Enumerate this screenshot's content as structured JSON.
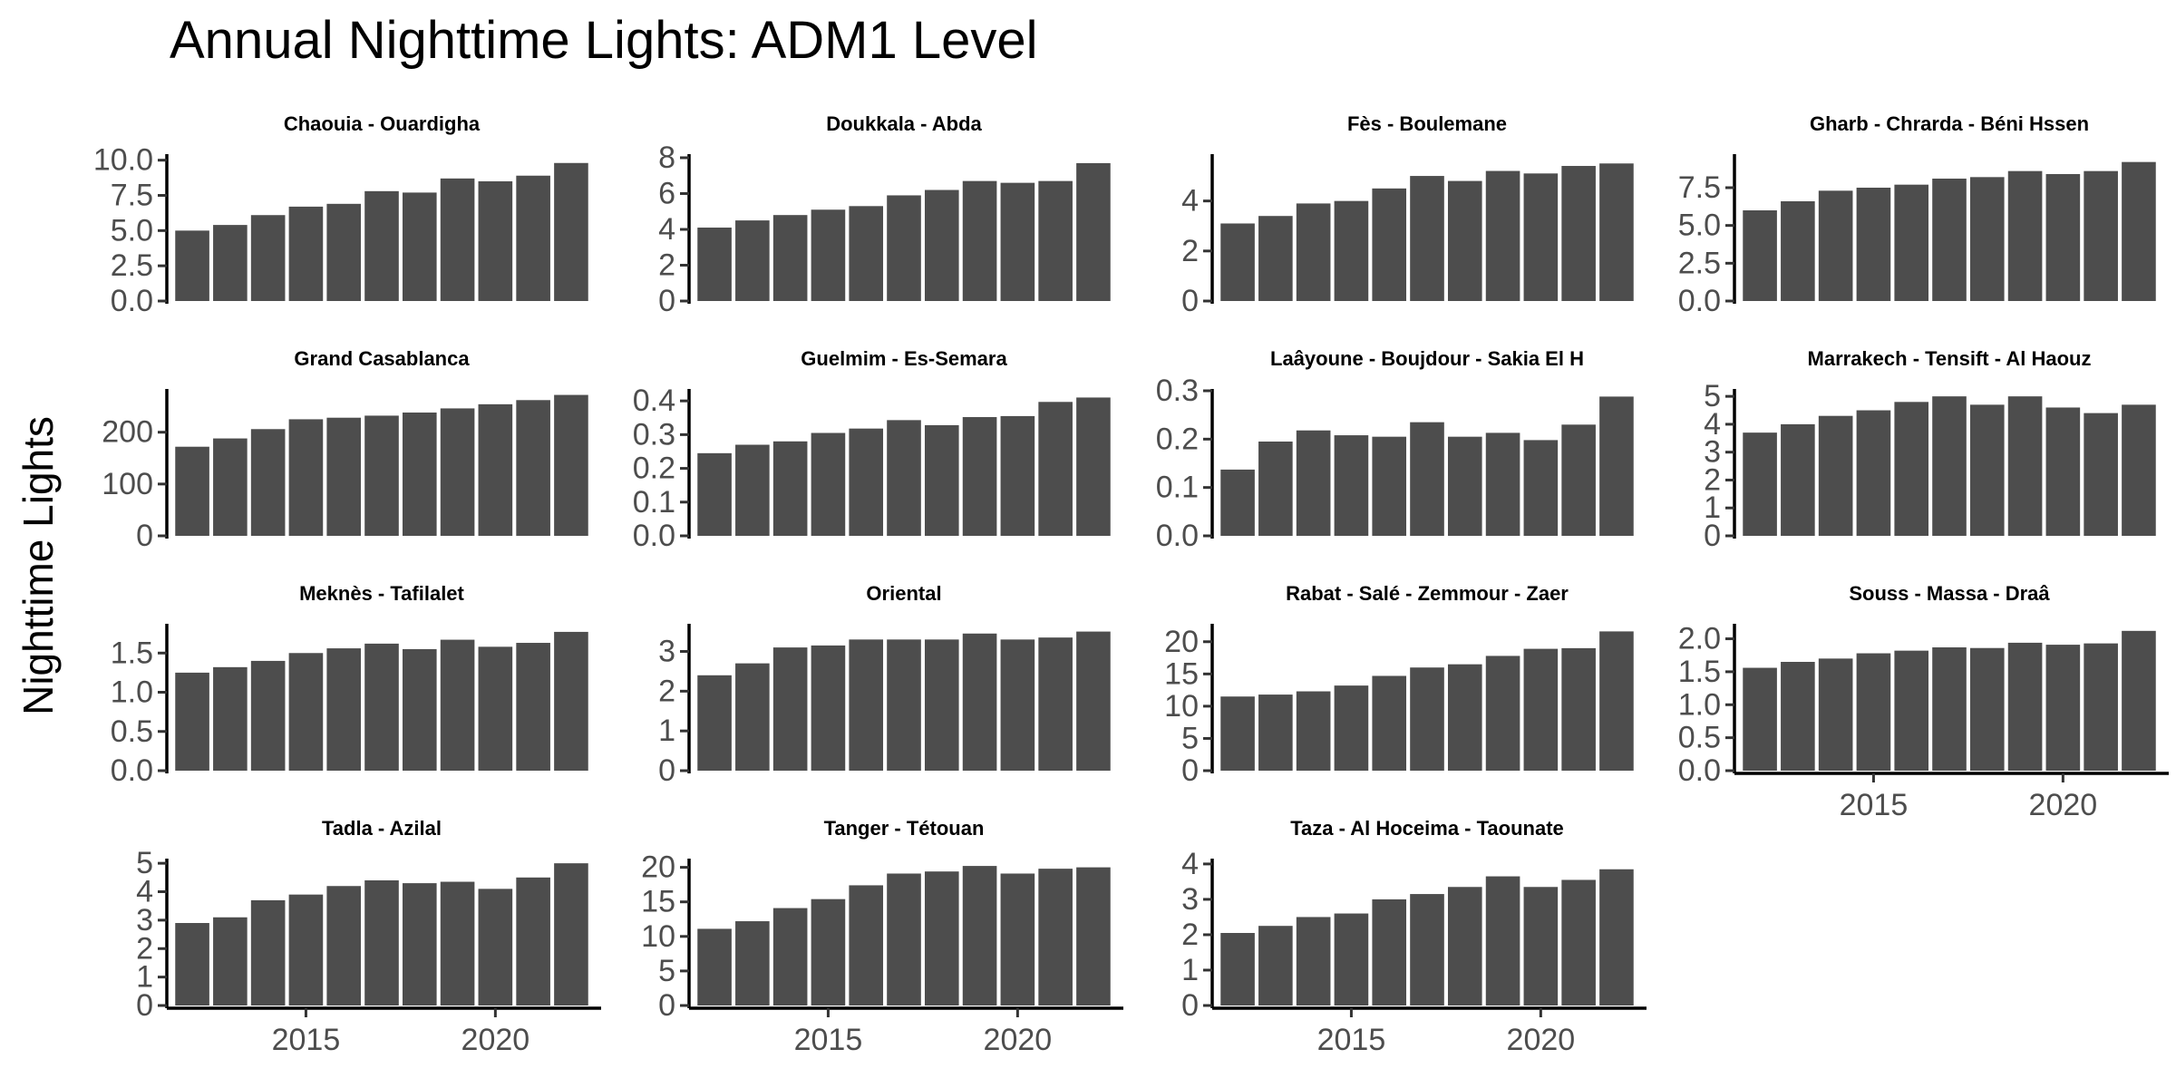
{
  "chart_data": {
    "type": "bar",
    "title": "Annual Nighttime Lights: ADM1 Level",
    "xlabel": "",
    "ylabel": "Nighttime Lights",
    "x": [
      2012,
      2013,
      2014,
      2015,
      2016,
      2017,
      2018,
      2019,
      2020,
      2021,
      2022
    ],
    "x_ticks": [
      2015,
      2020
    ],
    "x_tick_labels": [
      "2015",
      "2020"
    ],
    "grid": false,
    "legend": "none",
    "bar_color": "#4d4d4d",
    "panels": [
      {
        "name": "Chaouia - Ouardigha",
        "ylim": [
          0,
          10.3
        ],
        "yticks": [
          "0.0",
          "2.5",
          "5.0",
          "7.5",
          "10.0"
        ],
        "ytick_values": [
          0,
          2.5,
          5,
          7.5,
          10
        ],
        "values": [
          5.0,
          5.4,
          6.1,
          6.7,
          6.9,
          7.8,
          7.7,
          8.7,
          8.5,
          8.9,
          9.8
        ]
      },
      {
        "name": "Doukkala - Abda",
        "ylim": [
          0,
          8.1
        ],
        "yticks": [
          "0",
          "2",
          "4",
          "6",
          "8"
        ],
        "ytick_values": [
          0,
          2,
          4,
          6,
          8
        ],
        "values": [
          4.1,
          4.5,
          4.8,
          5.1,
          5.3,
          5.9,
          6.2,
          6.7,
          6.6,
          6.7,
          7.7
        ]
      },
      {
        "name": "Fès - Boulemane",
        "ylim": [
          0,
          5.8
        ],
        "yticks": [
          "0",
          "2",
          "4"
        ],
        "ytick_values": [
          0,
          2,
          4
        ],
        "values": [
          3.1,
          3.4,
          3.9,
          4.0,
          4.5,
          5.0,
          4.8,
          5.2,
          5.1,
          5.4,
          5.5
        ]
      },
      {
        "name": "Gharb - Chrarda - Béni Hssen",
        "ylim": [
          0,
          9.6
        ],
        "yticks": [
          "0.0",
          "2.5",
          "5.0",
          "7.5"
        ],
        "ytick_values": [
          0,
          2.5,
          5,
          7.5
        ],
        "values": [
          6.0,
          6.6,
          7.3,
          7.5,
          7.7,
          8.1,
          8.2,
          8.6,
          8.4,
          8.6,
          9.2
        ]
      },
      {
        "name": "Grand Casablanca",
        "ylim": [
          0,
          280
        ],
        "yticks": [
          "0",
          "100",
          "200"
        ],
        "ytick_values": [
          0,
          100,
          200
        ],
        "values": [
          172,
          188,
          206,
          225,
          228,
          232,
          238,
          246,
          254,
          262,
          272
        ]
      },
      {
        "name": "Guelmim - Es-Semara",
        "ylim": [
          0,
          0.43
        ],
        "yticks": [
          "0.0",
          "0.1",
          "0.2",
          "0.3",
          "0.4"
        ],
        "ytick_values": [
          0,
          0.1,
          0.2,
          0.3,
          0.4
        ],
        "values": [
          0.245,
          0.27,
          0.28,
          0.305,
          0.318,
          0.343,
          0.328,
          0.352,
          0.355,
          0.397,
          0.41
        ]
      },
      {
        "name": "Laâyoune - Boujdour - Sakia El H",
        "ylim": [
          0,
          0.3
        ],
        "yticks": [
          "0.0",
          "0.1",
          "0.2",
          "0.3"
        ],
        "ytick_values": [
          0,
          0.1,
          0.2,
          0.3
        ],
        "values": [
          0.137,
          0.195,
          0.218,
          0.208,
          0.205,
          0.235,
          0.205,
          0.213,
          0.198,
          0.23,
          0.288
        ]
      },
      {
        "name": "Marrakech - Tensift - Al Haouz",
        "ylim": [
          0,
          5.2
        ],
        "yticks": [
          "0",
          "1",
          "2",
          "3",
          "4",
          "5"
        ],
        "ytick_values": [
          0,
          1,
          2,
          3,
          4,
          5
        ],
        "values": [
          3.7,
          4.0,
          4.3,
          4.5,
          4.8,
          5.0,
          4.7,
          5.0,
          4.6,
          4.4,
          4.7
        ]
      },
      {
        "name": "Meknès - Tafilalet",
        "ylim": [
          0,
          1.85
        ],
        "yticks": [
          "0.0",
          "0.5",
          "1.0",
          "1.5"
        ],
        "ytick_values": [
          0,
          0.5,
          1,
          1.5
        ],
        "values": [
          1.25,
          1.32,
          1.4,
          1.5,
          1.56,
          1.62,
          1.55,
          1.67,
          1.58,
          1.63,
          1.77
        ]
      },
      {
        "name": "Oriental",
        "ylim": [
          0,
          3.65
        ],
        "yticks": [
          "0",
          "1",
          "2",
          "3"
        ],
        "ytick_values": [
          0,
          1,
          2,
          3
        ],
        "values": [
          2.4,
          2.7,
          3.1,
          3.15,
          3.3,
          3.3,
          3.3,
          3.45,
          3.3,
          3.35,
          3.5
        ]
      },
      {
        "name": "Rabat - Salé - Zemmour - Zaer",
        "ylim": [
          0,
          22.5
        ],
        "yticks": [
          "0",
          "5",
          "10",
          "15",
          "20"
        ],
        "ytick_values": [
          0,
          5,
          10,
          15,
          20
        ],
        "values": [
          11.5,
          11.8,
          12.3,
          13.2,
          14.7,
          16.0,
          16.5,
          17.8,
          18.9,
          19.0,
          21.6
        ]
      },
      {
        "name": "Souss - Massa - Draâ",
        "ylim": [
          0,
          2.2
        ],
        "yticks": [
          "0.0",
          "0.5",
          "1.0",
          "1.5",
          "2.0"
        ],
        "ytick_values": [
          0,
          0.5,
          1,
          1.5,
          2
        ],
        "values": [
          1.56,
          1.65,
          1.7,
          1.78,
          1.82,
          1.87,
          1.86,
          1.94,
          1.91,
          1.93,
          2.12
        ]
      },
      {
        "name": "Tadla - Azilal",
        "ylim": [
          0,
          5.1
        ],
        "yticks": [
          "0",
          "1",
          "2",
          "3",
          "4",
          "5"
        ],
        "ytick_values": [
          0,
          1,
          2,
          3,
          4,
          5
        ],
        "values": [
          2.9,
          3.1,
          3.7,
          3.9,
          4.2,
          4.4,
          4.3,
          4.35,
          4.1,
          4.5,
          5.0
        ]
      },
      {
        "name": "Tanger - Tétouan",
        "ylim": [
          0,
          21
        ],
        "yticks": [
          "0",
          "5",
          "10",
          "15",
          "20"
        ],
        "ytick_values": [
          0,
          5,
          10,
          15,
          20
        ],
        "values": [
          11.1,
          12.2,
          14.1,
          15.4,
          17.4,
          19.1,
          19.4,
          20.2,
          19.1,
          19.8,
          20.0
        ]
      },
      {
        "name": "Taza - Al Hoceima - Taounate",
        "ylim": [
          0,
          4.1
        ],
        "yticks": [
          "0",
          "1",
          "2",
          "3",
          "4"
        ],
        "ytick_values": [
          0,
          1,
          2,
          3,
          4
        ],
        "values": [
          2.05,
          2.25,
          2.5,
          2.6,
          3.0,
          3.15,
          3.35,
          3.65,
          3.35,
          3.55,
          3.85
        ]
      }
    ]
  }
}
